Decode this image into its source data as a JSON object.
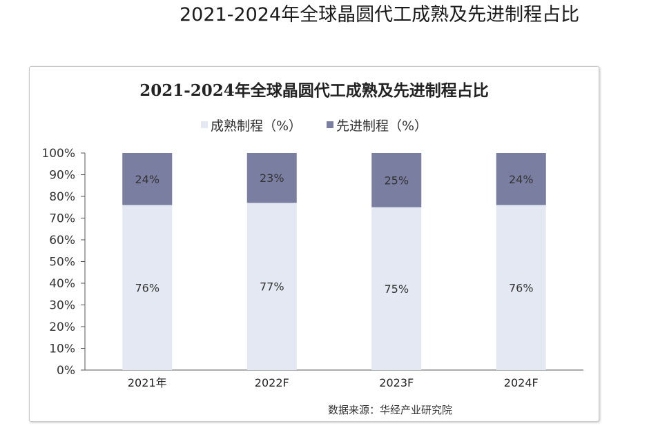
{
  "page": {
    "title": "2021-2024年全球晶圆代工成熟及先进制程占比"
  },
  "chart_data": {
    "type": "bar",
    "stacked": true,
    "title": "2021-2024年全球晶圆代工成熟及先进制程占比",
    "categories": [
      "2021年",
      "2022F",
      "2023F",
      "2024F"
    ],
    "series": [
      {
        "name": "成熟制程（%）",
        "color": "#e4e8f2",
        "values": [
          76,
          77,
          75,
          76
        ]
      },
      {
        "name": "先进制程（%）",
        "color": "#7a7fa2",
        "values": [
          24,
          23,
          25,
          24
        ]
      }
    ],
    "data_labels": [
      [
        "76%",
        "77%",
        "75%",
        "76%"
      ],
      [
        "24%",
        "23%",
        "25%",
        "24%"
      ]
    ],
    "y_ticks": [
      "0%",
      "10%",
      "20%",
      "30%",
      "40%",
      "50%",
      "60%",
      "70%",
      "80%",
      "90%",
      "100%"
    ],
    "ylim": [
      0,
      100
    ],
    "xlabel": "",
    "ylabel": "",
    "legend": "top-center",
    "grid": false,
    "source": "数据来源：华经产业研究院"
  }
}
